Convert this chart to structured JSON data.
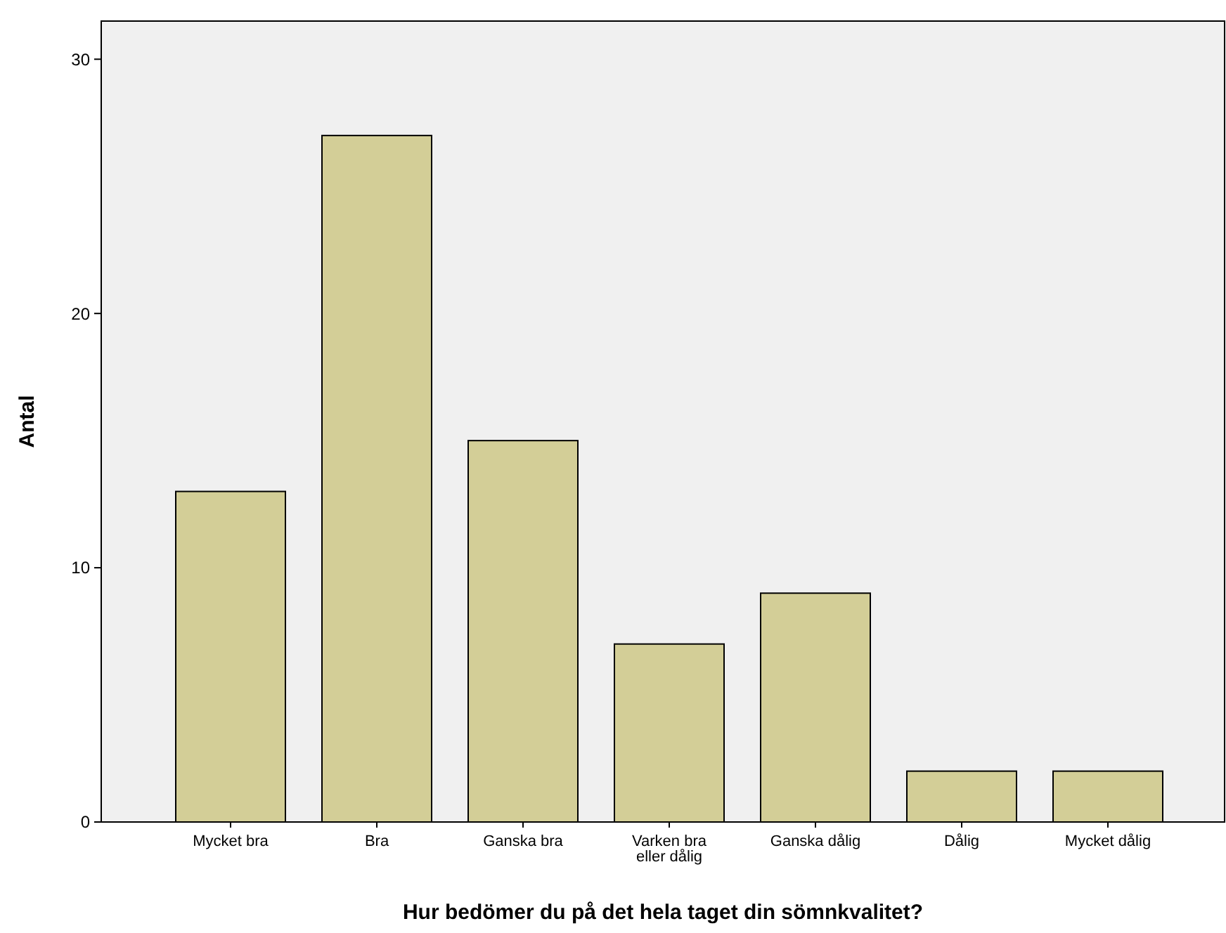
{
  "chart_data": {
    "type": "bar",
    "xlabel": "Hur bedömer du på det hela taget din sömnkvalitet?",
    "ylabel": "Antal",
    "categories": [
      "Mycket bra",
      "Bra",
      "Ganska bra",
      "Varken bra eller dålig",
      "Ganska dålig",
      "Dålig",
      "Mycket dålig"
    ],
    "values": [
      13,
      27,
      15,
      7,
      9,
      2,
      2
    ],
    "color": "#d3ce97",
    "ylim": [
      0,
      31.5
    ],
    "yticks": [
      0,
      10,
      20,
      30
    ],
    "grid": false
  }
}
